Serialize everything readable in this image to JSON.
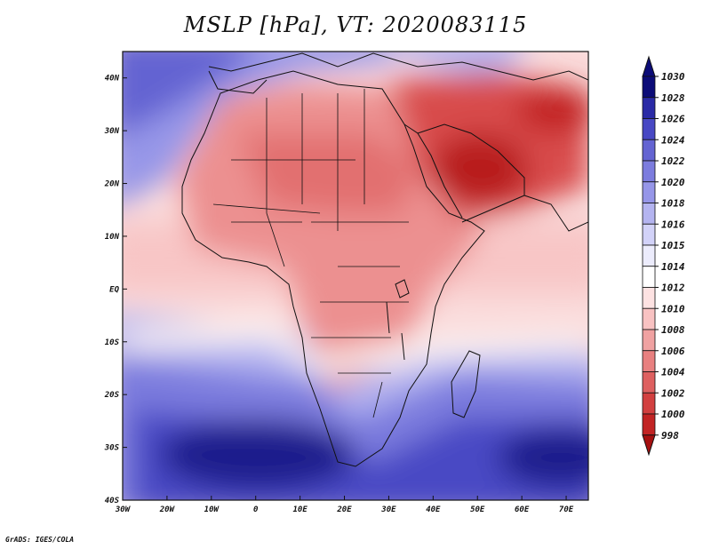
{
  "chart_data": {
    "type": "heatmap",
    "title": "MSLP [hPa], VT: 2020083115",
    "x_ticks": [
      "30W",
      "20W",
      "10W",
      "0",
      "10E",
      "20E",
      "30E",
      "40E",
      "50E",
      "60E",
      "70E"
    ],
    "y_ticks": [
      "40N",
      "30N",
      "20N",
      "10N",
      "EQ",
      "10S",
      "20S",
      "30S",
      "40S"
    ],
    "xlim": [
      -30,
      75
    ],
    "ylim": [
      -40,
      45
    ],
    "colorbar": {
      "levels": [
        "1030",
        "1028",
        "1026",
        "1024",
        "1022",
        "1020",
        "1018",
        "1016",
        "1015",
        "1014",
        "1012",
        "1010",
        "1008",
        "1006",
        "1004",
        "1002",
        "1000",
        "998"
      ],
      "colors": [
        "#0c0c78",
        "#2a2aa6",
        "#4848c4",
        "#6464d2",
        "#7c7cde",
        "#9696e8",
        "#b4b4f0",
        "#d2d2f8",
        "#ececfc",
        "#ffffff",
        "#fde2e2",
        "#f8c2c2",
        "#f0a2a2",
        "#e88080",
        "#de6060",
        "#d24040",
        "#c22424",
        "#a61010"
      ]
    },
    "credit": "GrADS: IGES/COLA"
  }
}
